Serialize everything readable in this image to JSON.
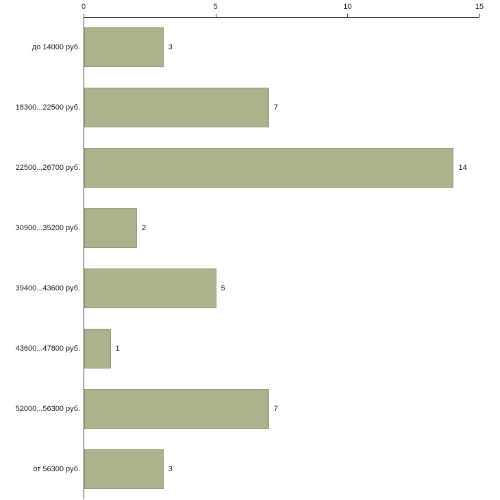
{
  "chart_data": {
    "type": "bar",
    "orientation": "horizontal",
    "title": "",
    "xlabel": "",
    "ylabel": "",
    "categories": [
      "до 14000 руб.",
      "18300...22500 руб.",
      "22500...26700 руб.",
      "30900...35200 руб.",
      "39400...43600 руб.",
      "43600...47800 руб.",
      "52000...56300 руб.",
      "от 56300 руб."
    ],
    "values": [
      3,
      7,
      14,
      2,
      5,
      1,
      7,
      3
    ],
    "xlim": [
      0,
      15
    ],
    "x_ticks": [
      "0",
      "5",
      "10",
      "15"
    ],
    "x_tick_values": [
      0,
      5,
      10,
      15
    ],
    "grid": false,
    "legend": false,
    "axis_position": "top-left",
    "colors": {
      "bar_fill": "#abb28e",
      "bar_border": "#939b72",
      "axis": "#3c3c3c",
      "text": "#1a1a1a",
      "background": "#ffffff"
    }
  }
}
